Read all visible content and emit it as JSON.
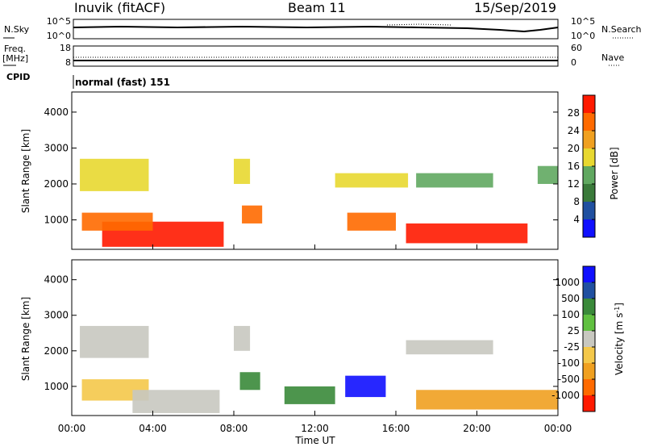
{
  "header": {
    "station": "Inuvik  (fitACF)",
    "beam": "Beam 11",
    "date": "15/Sep/2019"
  },
  "panels": {
    "nsky": {
      "label": "N.Sky",
      "right_label": "N.Search",
      "left_ticks": [
        "10^5",
        "10^0"
      ],
      "right_ticks": [
        "10^5",
        "10^0"
      ]
    },
    "freq": {
      "label_1": "Freq.",
      "label_2": "[MHz]",
      "right_label": "Nave",
      "left_ticks": [
        "18",
        "8"
      ],
      "right_ticks": [
        "60",
        "0"
      ]
    },
    "cpid": {
      "label": "CPID",
      "mode": "normal (fast) 151"
    }
  },
  "chart_data": [
    {
      "type": "heatmap",
      "name": "power",
      "xlabel": "",
      "ylabel": "Slant Range [km]",
      "x_tick_labels": [
        "00:00",
        "04:00",
        "08:00",
        "12:00",
        "16:00",
        "20:00",
        "00:00"
      ],
      "y_ticks": [
        1000,
        2000,
        3000,
        4000
      ],
      "ylim": [
        180,
        4560
      ],
      "colorbar": {
        "label": "Power [dB]",
        "ticks": [
          4,
          8,
          12,
          16,
          20,
          24,
          28
        ],
        "colors": [
          "#1010ff",
          "#2050a0",
          "#3a7a3a",
          "#60a860",
          "#e8d830",
          "#f0a020",
          "#ff6a00",
          "#ff1a00"
        ]
      },
      "echo_regions": [
        {
          "t0": 1.5,
          "t1": 7.5,
          "r0": 250,
          "r1": 950,
          "level": 28
        },
        {
          "t0": 0.5,
          "t1": 4.0,
          "r0": 700,
          "r1": 1200,
          "level": 24
        },
        {
          "t0": 8.4,
          "t1": 9.4,
          "r0": 900,
          "r1": 1400,
          "level": 24
        },
        {
          "t0": 16.5,
          "t1": 22.5,
          "r0": 350,
          "r1": 900,
          "level": 28
        },
        {
          "t0": 13.6,
          "t1": 16.0,
          "r0": 700,
          "r1": 1200,
          "level": 24
        },
        {
          "t0": 0.4,
          "t1": 3.8,
          "r0": 1800,
          "r1": 2700,
          "level": 16
        },
        {
          "t0": 13.0,
          "t1": 16.6,
          "r0": 1900,
          "r1": 2300,
          "level": 16
        },
        {
          "t0": 8.0,
          "t1": 8.8,
          "r0": 2000,
          "r1": 2700,
          "level": 16
        },
        {
          "t0": 17.0,
          "t1": 20.8,
          "r0": 1900,
          "r1": 2300,
          "level": 12
        },
        {
          "t0": 23.0,
          "t1": 24.0,
          "r0": 2000,
          "r1": 2500,
          "level": 12
        }
      ]
    },
    {
      "type": "heatmap",
      "name": "velocity",
      "xlabel": "Time UT",
      "ylabel": "Slant Range [km]",
      "x_tick_labels": [
        "00:00",
        "04:00",
        "08:00",
        "12:00",
        "16:00",
        "20:00",
        "00:00"
      ],
      "y_ticks": [
        1000,
        2000,
        3000,
        4000
      ],
      "ylim": [
        180,
        4560
      ],
      "colorbar": {
        "label": "Velocity [m s",
        "ticks": [
          -1000,
          -500,
          -100,
          -25,
          25,
          100,
          500,
          1000
        ],
        "colors": [
          "#ff1a00",
          "#ff6a00",
          "#f0a020",
          "#f4c84a",
          "#c8c8c0",
          "#60c040",
          "#3a8a3a",
          "#2050a0",
          "#1010ff"
        ]
      },
      "echo_regions": [
        {
          "t0": 0.5,
          "t1": 3.8,
          "r0": 600,
          "r1": 1200,
          "level": -100
        },
        {
          "t0": 3.0,
          "t1": 7.3,
          "r0": 250,
          "r1": 900,
          "level": 0
        },
        {
          "t0": 8.3,
          "t1": 9.3,
          "r0": 900,
          "r1": 1400,
          "level": 100
        },
        {
          "t0": 13.5,
          "t1": 15.5,
          "r0": 700,
          "r1": 1300,
          "level": 1000
        },
        {
          "t0": 17.0,
          "t1": 24.0,
          "r0": 350,
          "r1": 900,
          "level": -500
        },
        {
          "t0": 0.4,
          "t1": 3.8,
          "r0": 1800,
          "r1": 2700,
          "level": 0
        },
        {
          "t0": 8.0,
          "t1": 8.8,
          "r0": 2000,
          "r1": 2700,
          "level": 0
        },
        {
          "t0": 16.5,
          "t1": 20.8,
          "r0": 1900,
          "r1": 2300,
          "level": 0
        },
        {
          "t0": 10.5,
          "t1": 13.0,
          "r0": 500,
          "r1": 1000,
          "level": 100
        }
      ]
    }
  ]
}
